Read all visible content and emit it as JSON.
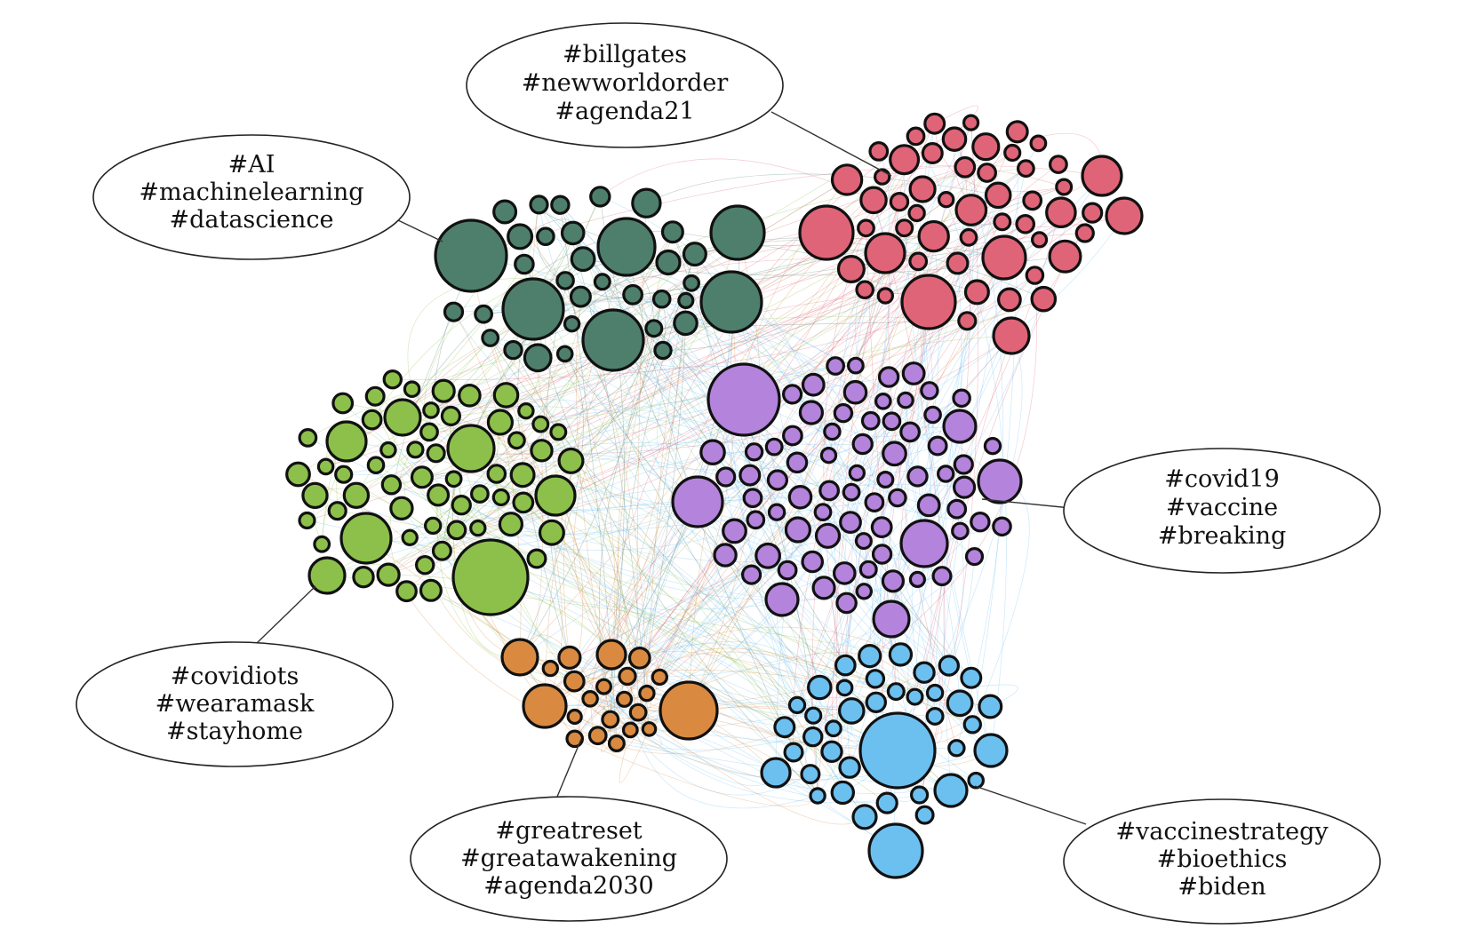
{
  "diagram": {
    "type": "hashtag-cluster-network",
    "clusters": [
      {
        "id": "ai",
        "color": "#4e7f6c",
        "hashtags": [
          "#AI",
          "#machinelearning",
          "#datascience"
        ]
      },
      {
        "id": "billgates",
        "color": "#df6477",
        "hashtags": [
          "#billgates",
          "#newworldorder",
          "#agenda21"
        ]
      },
      {
        "id": "covidiots",
        "color": "#8cc04a",
        "hashtags": [
          "#covidiots",
          "#wearamask",
          "#stayhome"
        ]
      },
      {
        "id": "covid19",
        "color": "#b483dc",
        "hashtags": [
          "#covid19",
          "#vaccine",
          "#breaking"
        ]
      },
      {
        "id": "greatreset",
        "color": "#d98a40",
        "hashtags": [
          "#greatreset",
          "#greatawakening",
          "#agenda2030"
        ]
      },
      {
        "id": "vaccinestrategy",
        "color": "#6cc0f0",
        "hashtags": [
          "#vaccinestrategy",
          "#bioethics",
          "#biden"
        ]
      }
    ]
  }
}
